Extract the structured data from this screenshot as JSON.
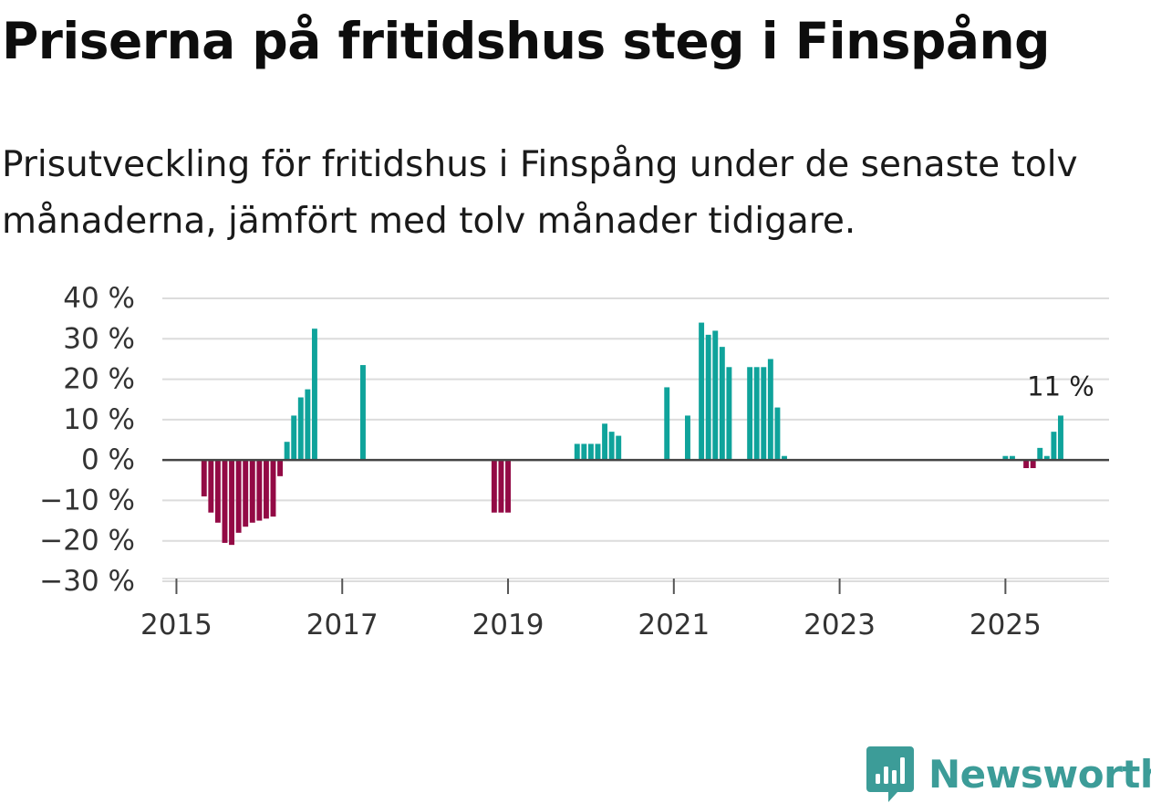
{
  "header": {
    "title": "Priserna på fritidshus steg i Finspång",
    "subtitle": "Prisutveckling för fritidshus i Finspång under de senaste tolv månaderna, jämfört med tolv månader tidigare."
  },
  "brand": {
    "name": "Newsworthy",
    "color": "#3c9c98"
  },
  "colors": {
    "positive": "#0fa39b",
    "negative": "#930a45",
    "grid": "#dcdcdc",
    "zero_line": "#444444"
  },
  "chart_data": {
    "type": "bar",
    "title": "Priserna på fritidshus steg i Finspång",
    "subtitle": "Prisutveckling för fritidshus i Finspång under de senaste tolv månaderna, jämfört med tolv månader tidigare.",
    "xlabel": "",
    "ylabel": "",
    "unit": "%",
    "ylim": [
      -30,
      40
    ],
    "xlim": [
      2014.83,
      2026.25
    ],
    "y_ticks": [
      40,
      30,
      20,
      10,
      0,
      -10,
      -20,
      -30
    ],
    "y_tick_labels": [
      "40 %",
      "30 %",
      "20 %",
      "10 %",
      "0 %",
      "−10 %",
      "−20 %",
      "−30 %"
    ],
    "x_ticks": [
      2015,
      2017,
      2019,
      2021,
      2023,
      2025
    ],
    "x_tick_labels": [
      "2015",
      "2017",
      "2019",
      "2021",
      "2023",
      "2025"
    ],
    "grid": "horizontal",
    "annotation": {
      "text": "11 %",
      "date": "2025-09",
      "value": 11
    },
    "series": [
      {
        "name": "Prisutveckling",
        "points": [
          {
            "date": "2015-05",
            "value": -9
          },
          {
            "date": "2015-06",
            "value": -13
          },
          {
            "date": "2015-07",
            "value": -15.5
          },
          {
            "date": "2015-08",
            "value": -20.5
          },
          {
            "date": "2015-09",
            "value": -21
          },
          {
            "date": "2015-10",
            "value": -18
          },
          {
            "date": "2015-11",
            "value": -16.5
          },
          {
            "date": "2015-12",
            "value": -15.5
          },
          {
            "date": "2016-01",
            "value": -15
          },
          {
            "date": "2016-02",
            "value": -14.5
          },
          {
            "date": "2016-03",
            "value": -14
          },
          {
            "date": "2016-04",
            "value": -4
          },
          {
            "date": "2016-05",
            "value": 4.5
          },
          {
            "date": "2016-06",
            "value": 11
          },
          {
            "date": "2016-07",
            "value": 15.5
          },
          {
            "date": "2016-08",
            "value": 17.5
          },
          {
            "date": "2016-09",
            "value": 32.5
          },
          {
            "date": "2017-04",
            "value": 23.5
          },
          {
            "date": "2018-11",
            "value": -13
          },
          {
            "date": "2018-12",
            "value": -13
          },
          {
            "date": "2019-01",
            "value": -13
          },
          {
            "date": "2019-11",
            "value": 4
          },
          {
            "date": "2019-12",
            "value": 4
          },
          {
            "date": "2020-01",
            "value": 4
          },
          {
            "date": "2020-02",
            "value": 4
          },
          {
            "date": "2020-03",
            "value": 9
          },
          {
            "date": "2020-04",
            "value": 7
          },
          {
            "date": "2020-05",
            "value": 6
          },
          {
            "date": "2020-12",
            "value": 18
          },
          {
            "date": "2021-03",
            "value": 11
          },
          {
            "date": "2021-05",
            "value": 34
          },
          {
            "date": "2021-06",
            "value": 31
          },
          {
            "date": "2021-07",
            "value": 32
          },
          {
            "date": "2021-08",
            "value": 28
          },
          {
            "date": "2021-09",
            "value": 23
          },
          {
            "date": "2021-12",
            "value": 23
          },
          {
            "date": "2022-01",
            "value": 23
          },
          {
            "date": "2022-02",
            "value": 23
          },
          {
            "date": "2022-03",
            "value": 25
          },
          {
            "date": "2022-04",
            "value": 13
          },
          {
            "date": "2022-05",
            "value": 1
          },
          {
            "date": "2025-01",
            "value": 1
          },
          {
            "date": "2025-02",
            "value": 1
          },
          {
            "date": "2025-04",
            "value": -2
          },
          {
            "date": "2025-05",
            "value": -2
          },
          {
            "date": "2025-06",
            "value": 3
          },
          {
            "date": "2025-07",
            "value": 1
          },
          {
            "date": "2025-08",
            "value": 7
          },
          {
            "date": "2025-09",
            "value": 11
          }
        ]
      }
    ]
  }
}
